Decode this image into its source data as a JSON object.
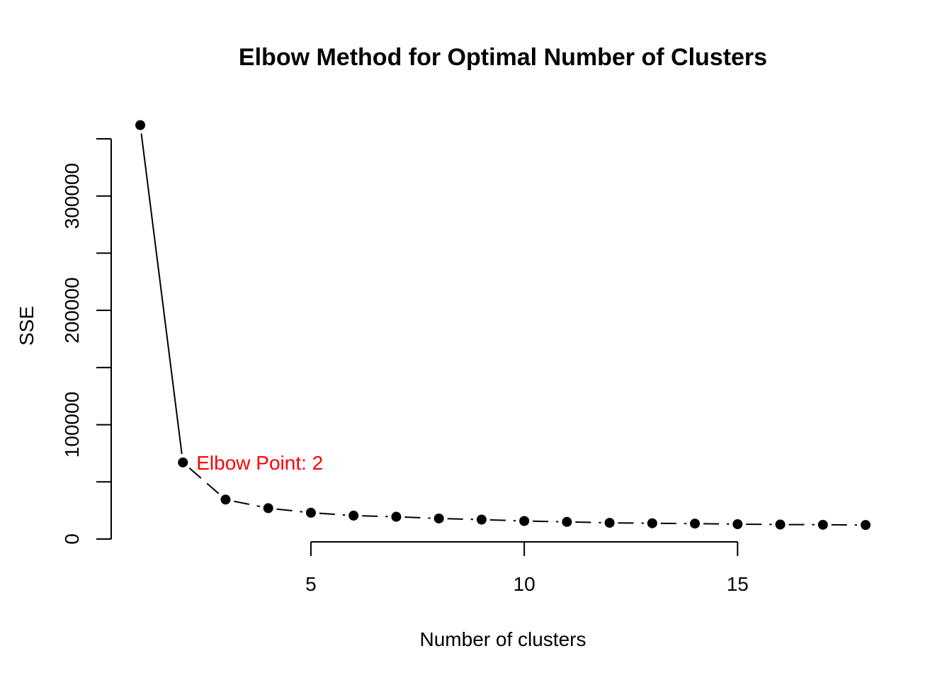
{
  "chart_data": {
    "type": "line",
    "title": "Elbow Method for Optimal Number of Clusters",
    "xlabel": "Number of clusters",
    "ylabel": "SSE",
    "x": [
      1,
      2,
      3,
      4,
      5,
      6,
      7,
      8,
      9,
      10,
      11,
      12,
      13,
      14,
      15,
      16,
      17,
      18
    ],
    "values": [
      362000,
      67000,
      34500,
      27000,
      23000,
      20500,
      19500,
      18000,
      17000,
      15800,
      15000,
      14200,
      13800,
      13500,
      13000,
      12700,
      12500,
      12300
    ],
    "xlim": [
      0.8,
      18.2
    ],
    "ylim": [
      0,
      350000
    ],
    "x_ticks": [
      5,
      10,
      15
    ],
    "x_tick_labels": [
      "5",
      "10",
      "15"
    ],
    "y_ticks": [
      0,
      50000,
      100000,
      150000,
      200000,
      250000,
      300000,
      350000
    ],
    "y_tick_labels": [
      "0",
      "",
      "100000",
      "",
      "200000",
      "",
      "300000",
      ""
    ],
    "line_style_first_segment": "solid",
    "line_style_rest": "dashed",
    "marker": "filled-circle",
    "grid": false,
    "annotation": {
      "text": "Elbow Point: 2",
      "x": 2,
      "color": "#ff0000"
    },
    "colors": {
      "series": "#000000",
      "annotation": "#ff0000"
    }
  }
}
